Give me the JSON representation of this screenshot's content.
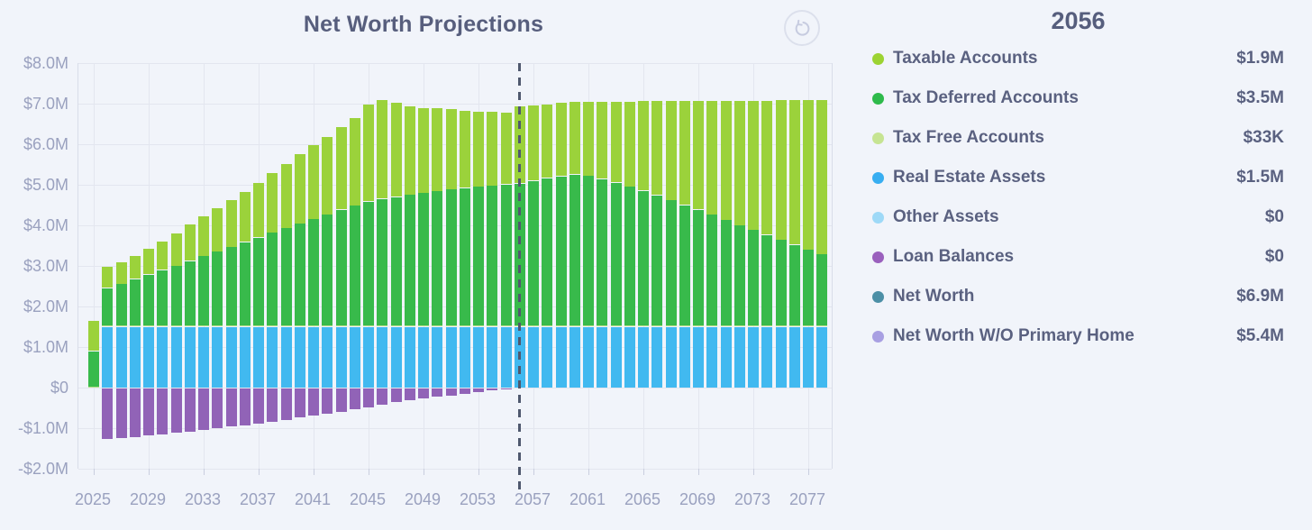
{
  "chart": {
    "title": "Net Worth Projections",
    "y_ticks": [
      {
        "label": "$8.0M",
        "value": 8
      },
      {
        "label": "$7.0M",
        "value": 7
      },
      {
        "label": "$6.0M",
        "value": 6
      },
      {
        "label": "$5.0M",
        "value": 5
      },
      {
        "label": "$4.0M",
        "value": 4
      },
      {
        "label": "$3.0M",
        "value": 3
      },
      {
        "label": "$2.0M",
        "value": 2
      },
      {
        "label": "$1.0M",
        "value": 1
      },
      {
        "label": "$0",
        "value": 0
      },
      {
        "label": "-$1.0M",
        "value": -1
      },
      {
        "label": "-$2.0M",
        "value": -2
      }
    ],
    "x_ticks": [
      "2025",
      "2029",
      "2033",
      "2037",
      "2041",
      "2045",
      "2049",
      "2053",
      "2057",
      "2061",
      "2065",
      "2069",
      "2073",
      "2077"
    ]
  },
  "icons": {
    "reset": "circular-reset-arrow"
  },
  "colors": {
    "background": "#F1F4FA",
    "grid": "#E3E6EF",
    "axis_text": "#9AA1BF",
    "title_text": "#575E7D",
    "legend_text": "#5A6180",
    "marker_line": "#4F586E"
  },
  "chart_data": {
    "type": "bar",
    "stacked": true,
    "title": "Net Worth Projections",
    "xlabel": "",
    "ylabel": "",
    "units": "millions USD",
    "ylim": [
      -2,
      8
    ],
    "grid": true,
    "annotation": {
      "type": "dashed-vline",
      "x": 2056
    },
    "x": [
      2025,
      2026,
      2027,
      2028,
      2029,
      2030,
      2031,
      2032,
      2033,
      2034,
      2035,
      2036,
      2037,
      2038,
      2039,
      2040,
      2041,
      2042,
      2043,
      2044,
      2045,
      2046,
      2047,
      2048,
      2049,
      2050,
      2051,
      2052,
      2053,
      2054,
      2055,
      2056,
      2057,
      2058,
      2059,
      2060,
      2061,
      2062,
      2063,
      2064,
      2065,
      2066,
      2067,
      2068,
      2069,
      2070,
      2071,
      2072,
      2073,
      2074,
      2075,
      2076,
      2077,
      2078
    ],
    "series": [
      {
        "name": "Loan Balances",
        "color": "#9163B7",
        "values": [
          0,
          -1.25,
          -1.22,
          -1.19,
          -1.16,
          -1.13,
          -1.09,
          -1.06,
          -1.02,
          -0.98,
          -0.94,
          -0.9,
          -0.86,
          -0.82,
          -0.77,
          -0.72,
          -0.67,
          -0.62,
          -0.57,
          -0.52,
          -0.46,
          -0.4,
          -0.34,
          -0.29,
          -0.25,
          -0.21,
          -0.17,
          -0.13,
          -0.09,
          -0.05,
          -0.02,
          0,
          0,
          0,
          0,
          0,
          0,
          0,
          0,
          0,
          0,
          0,
          0,
          0,
          0,
          0,
          0,
          0,
          0,
          0,
          0,
          0,
          0,
          0
        ]
      },
      {
        "name": "Real Estate Assets",
        "color": "#41B9F0",
        "values": [
          0,
          1.5,
          1.5,
          1.5,
          1.5,
          1.5,
          1.5,
          1.5,
          1.5,
          1.5,
          1.5,
          1.5,
          1.5,
          1.5,
          1.5,
          1.5,
          1.5,
          1.5,
          1.5,
          1.5,
          1.5,
          1.5,
          1.5,
          1.5,
          1.5,
          1.5,
          1.5,
          1.5,
          1.5,
          1.5,
          1.5,
          1.5,
          1.5,
          1.5,
          1.5,
          1.5,
          1.5,
          1.5,
          1.5,
          1.5,
          1.5,
          1.5,
          1.5,
          1.5,
          1.5,
          1.5,
          1.5,
          1.5,
          1.5,
          1.5,
          1.5,
          1.5,
          1.5,
          1.5
        ]
      },
      {
        "name": "Tax Free Accounts",
        "color": "#B5E089",
        "values": [
          0.02,
          0.03,
          0.03,
          0.03,
          0.03,
          0.03,
          0.03,
          0.03,
          0.03,
          0.03,
          0.03,
          0.03,
          0.03,
          0.03,
          0.03,
          0.03,
          0.03,
          0.03,
          0.03,
          0.03,
          0.03,
          0.03,
          0.03,
          0.03,
          0.03,
          0.03,
          0.03,
          0.03,
          0.03,
          0.03,
          0.03,
          0.03,
          0.03,
          0.03,
          0.03,
          0.03,
          0.03,
          0.03,
          0.03,
          0.03,
          0.03,
          0.03,
          0.03,
          0.03,
          0.03,
          0.03,
          0.03,
          0.03,
          0.03,
          0.03,
          0.03,
          0.03,
          0.03,
          0.03
        ]
      },
      {
        "name": "Tax Deferred Accounts",
        "color": "#38BA4B",
        "values": [
          0.88,
          0.92,
          1.02,
          1.14,
          1.25,
          1.37,
          1.47,
          1.59,
          1.71,
          1.82,
          1.93,
          2.05,
          2.17,
          2.29,
          2.4,
          2.51,
          2.62,
          2.73,
          2.85,
          2.96,
          3.05,
          3.12,
          3.17,
          3.22,
          3.27,
          3.31,
          3.35,
          3.39,
          3.42,
          3.45,
          3.48,
          3.5,
          3.57,
          3.63,
          3.68,
          3.72,
          3.69,
          3.61,
          3.52,
          3.42,
          3.32,
          3.21,
          3.09,
          2.97,
          2.85,
          2.73,
          2.6,
          2.47,
          2.35,
          2.23,
          2.11,
          1.99,
          1.87,
          1.75
        ]
      },
      {
        "name": "Taxable Accounts",
        "color": "#9BD23B",
        "values": [
          0.75,
          0.53,
          0.55,
          0.58,
          0.64,
          0.7,
          0.8,
          0.9,
          0.98,
          1.07,
          1.16,
          1.24,
          1.34,
          1.46,
          1.59,
          1.72,
          1.83,
          1.92,
          2.04,
          2.16,
          2.4,
          2.43,
          2.32,
          2.19,
          2.08,
          2.04,
          1.98,
          1.91,
          1.85,
          1.82,
          1.77,
          1.9,
          1.85,
          1.82,
          1.81,
          1.8,
          1.83,
          1.91,
          2.0,
          2.1,
          2.21,
          2.32,
          2.44,
          2.56,
          2.68,
          2.81,
          2.94,
          3.07,
          3.19,
          3.31,
          3.44,
          3.56,
          3.68,
          3.8
        ]
      }
    ],
    "legend_position": "right"
  },
  "legend": {
    "title": "2056",
    "rows": [
      {
        "label": "Taxable Accounts",
        "value": "$1.9M",
        "color": "#9CD332"
      },
      {
        "label": "Tax Deferred Accounts",
        "value": "$3.5M",
        "color": "#2EBA4B"
      },
      {
        "label": "Tax Free Accounts",
        "value": "$33K",
        "color": "#C6E492"
      },
      {
        "label": "Real Estate Assets",
        "value": "$1.5M",
        "color": "#38AEF1"
      },
      {
        "label": "Other Assets",
        "value": "$0",
        "color": "#9ED9F7"
      },
      {
        "label": "Loan Balances",
        "value": "$0",
        "color": "#9A60BD"
      },
      {
        "label": "Net Worth",
        "value": "$6.9M",
        "color": "#4C8FA6"
      },
      {
        "label": "Net Worth W/O Primary Home",
        "value": "$5.4M",
        "color": "#A89FE2"
      }
    ]
  }
}
